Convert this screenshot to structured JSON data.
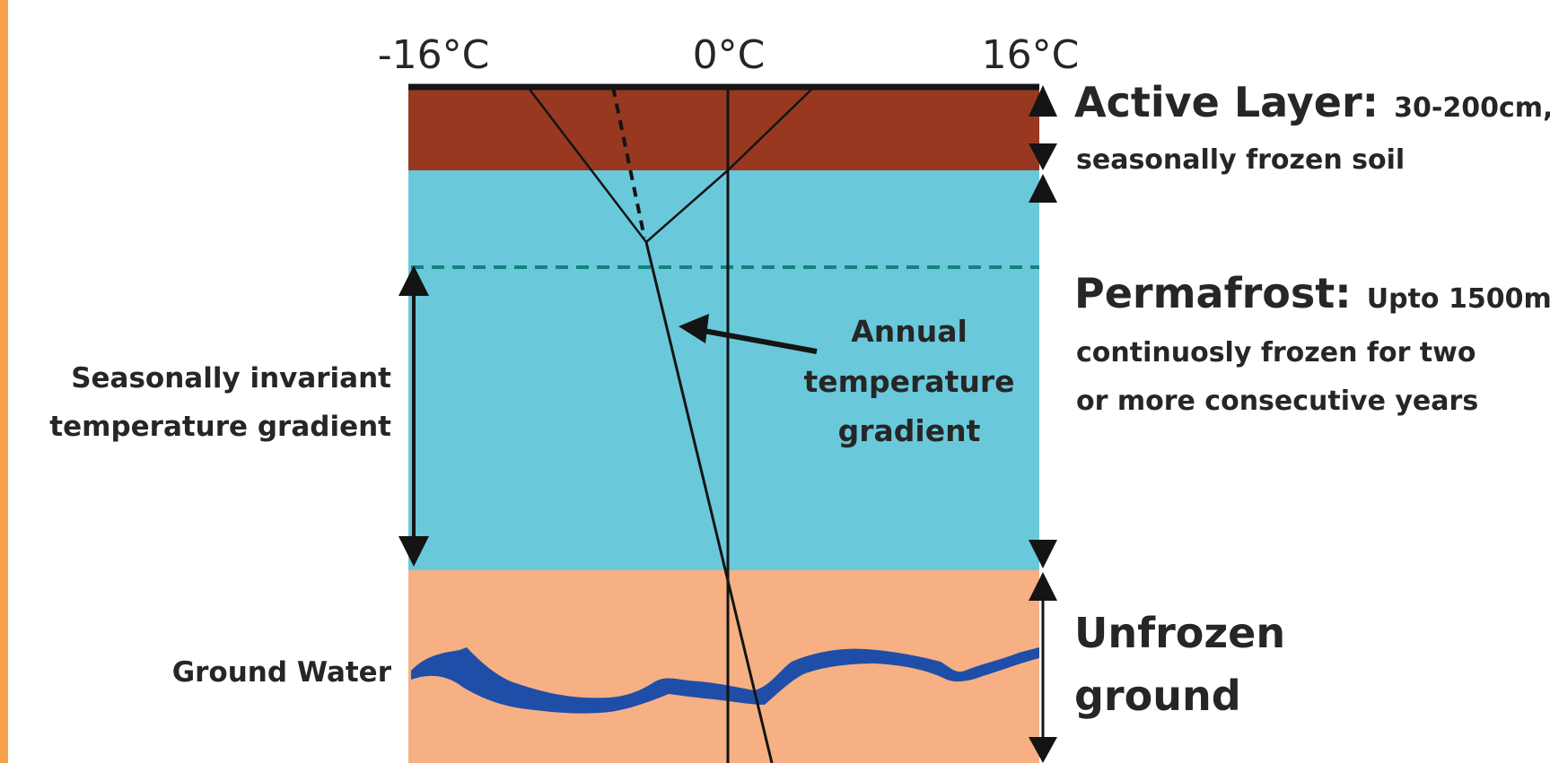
{
  "colors": {
    "frame_border": "#f7a24a",
    "active_layer": "#983821",
    "permafrost": "#69c9db",
    "unfrozen": "#f6b083",
    "ground_water": "#1f4ea8",
    "permafrost_table_line": "#12837f",
    "lines": "#141414"
  },
  "axis": {
    "left_label": "-16°C",
    "center_label": "0°C",
    "right_label": "16°C"
  },
  "active_layer": {
    "title": "Active Layer:",
    "detail_1": "30-200cm,",
    "detail_2": "seasonally frozen soil"
  },
  "permafrost": {
    "title": "Permafrost:",
    "detail_1": "Upto 1500m,",
    "detail_2": "continuosly frozen for two",
    "detail_3": "or more consecutive years"
  },
  "unfrozen": {
    "title_1": "Unfrozen",
    "title_2": "ground"
  },
  "left_labels": {
    "invariant_1": "Seasonally invariant",
    "invariant_2": "temperature gradient",
    "ground_water": "Ground Water"
  },
  "annual_gradient": {
    "line_1": "Annual",
    "line_2": "temperature",
    "line_3": "gradient"
  },
  "icons": {
    "depth_arrows": "double-headed-arrow-icon"
  }
}
